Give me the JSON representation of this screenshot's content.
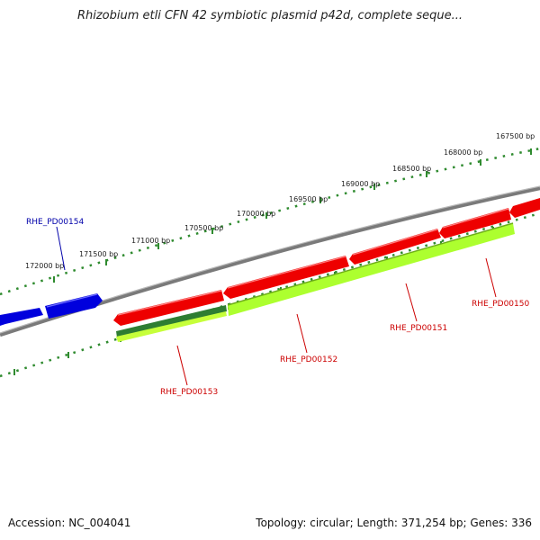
{
  "title": "Rhizobium etli CFN 42 symbiotic plasmid p42d, complete seque...",
  "footer": {
    "accession": "Accession: NC_004041",
    "stats": "Topology: circular; Length: 371,254 bp; Genes: 336"
  },
  "colors": {
    "backbone": "#808080",
    "forward_gene": "#ff0000",
    "reverse_gene": "#0000ff",
    "feature_light": "#adff2f",
    "feature_dark": "#228b22",
    "ruler_tick": "#006400",
    "forward_label": "#cc0000",
    "reverse_label": "#0000aa"
  },
  "ruler_labels": [
    {
      "text": "167500 bp"
    },
    {
      "text": "168000 bp"
    },
    {
      "text": "168500 bp"
    },
    {
      "text": "169000 bp"
    },
    {
      "text": "169500 bp"
    },
    {
      "text": "170000 bp"
    },
    {
      "text": "170500 bp"
    },
    {
      "text": "171000 bp"
    },
    {
      "text": "171500 bp"
    },
    {
      "text": "172000 bp"
    }
  ],
  "genes": [
    {
      "id": "RHE_PD00154",
      "strand": "reverse"
    },
    {
      "id": "RHE_PD00153",
      "strand": "forward"
    },
    {
      "id": "RHE_PD00152",
      "strand": "forward"
    },
    {
      "id": "RHE_PD00151",
      "strand": "forward"
    },
    {
      "id": "RHE_PD00150",
      "strand": "forward"
    }
  ]
}
